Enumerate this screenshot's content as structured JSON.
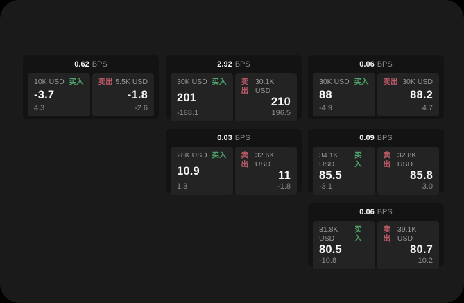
{
  "labels": {
    "bps_unit": "BPS",
    "buy": "买入",
    "sell": "卖出"
  },
  "colors": {
    "backdrop": "#000000",
    "app_background": "#1a1a1a",
    "card_background": "#131313",
    "panel_background": "#232323",
    "buy_accent": "#4fa36a",
    "sell_accent": "#bd5a68",
    "value_text": "#f7f7f7",
    "muted_text": "#8c8c8c"
  },
  "cards": [
    {
      "bps": "0.62",
      "buy": {
        "size": "10K USD",
        "price": "-3.7",
        "delta": "4.3"
      },
      "sell": {
        "size": "5.5K USD",
        "price": "-1.8",
        "delta": "-2.6"
      }
    },
    {
      "bps": "2.92",
      "buy": {
        "size": "30K USD",
        "price": "201",
        "delta": "-188.1"
      },
      "sell": {
        "size": "30.1K USD",
        "price": "210",
        "delta": "196.5"
      }
    },
    {
      "bps": "0.06",
      "buy": {
        "size": "30K USD",
        "price": "88",
        "delta": "-4.9"
      },
      "sell": {
        "size": "30K USD",
        "price": "88.2",
        "delta": "4.7"
      }
    },
    {
      "bps": "0.03",
      "buy": {
        "size": "28K USD",
        "price": "10.9",
        "delta": "1.3"
      },
      "sell": {
        "size": "32.6K USD",
        "price": "11",
        "delta": "-1.8"
      }
    },
    {
      "bps": "0.09",
      "buy": {
        "size": "34.1K USD",
        "price": "85.5",
        "delta": "-3.1"
      },
      "sell": {
        "size": "32.8K USD",
        "price": "85.8",
        "delta": "3.0"
      }
    },
    {
      "bps": "0.06",
      "buy": {
        "size": "31.8K USD",
        "price": "80.5",
        "delta": "-10.8"
      },
      "sell": {
        "size": "39.1K USD",
        "price": "80.7",
        "delta": "10.2"
      }
    }
  ]
}
